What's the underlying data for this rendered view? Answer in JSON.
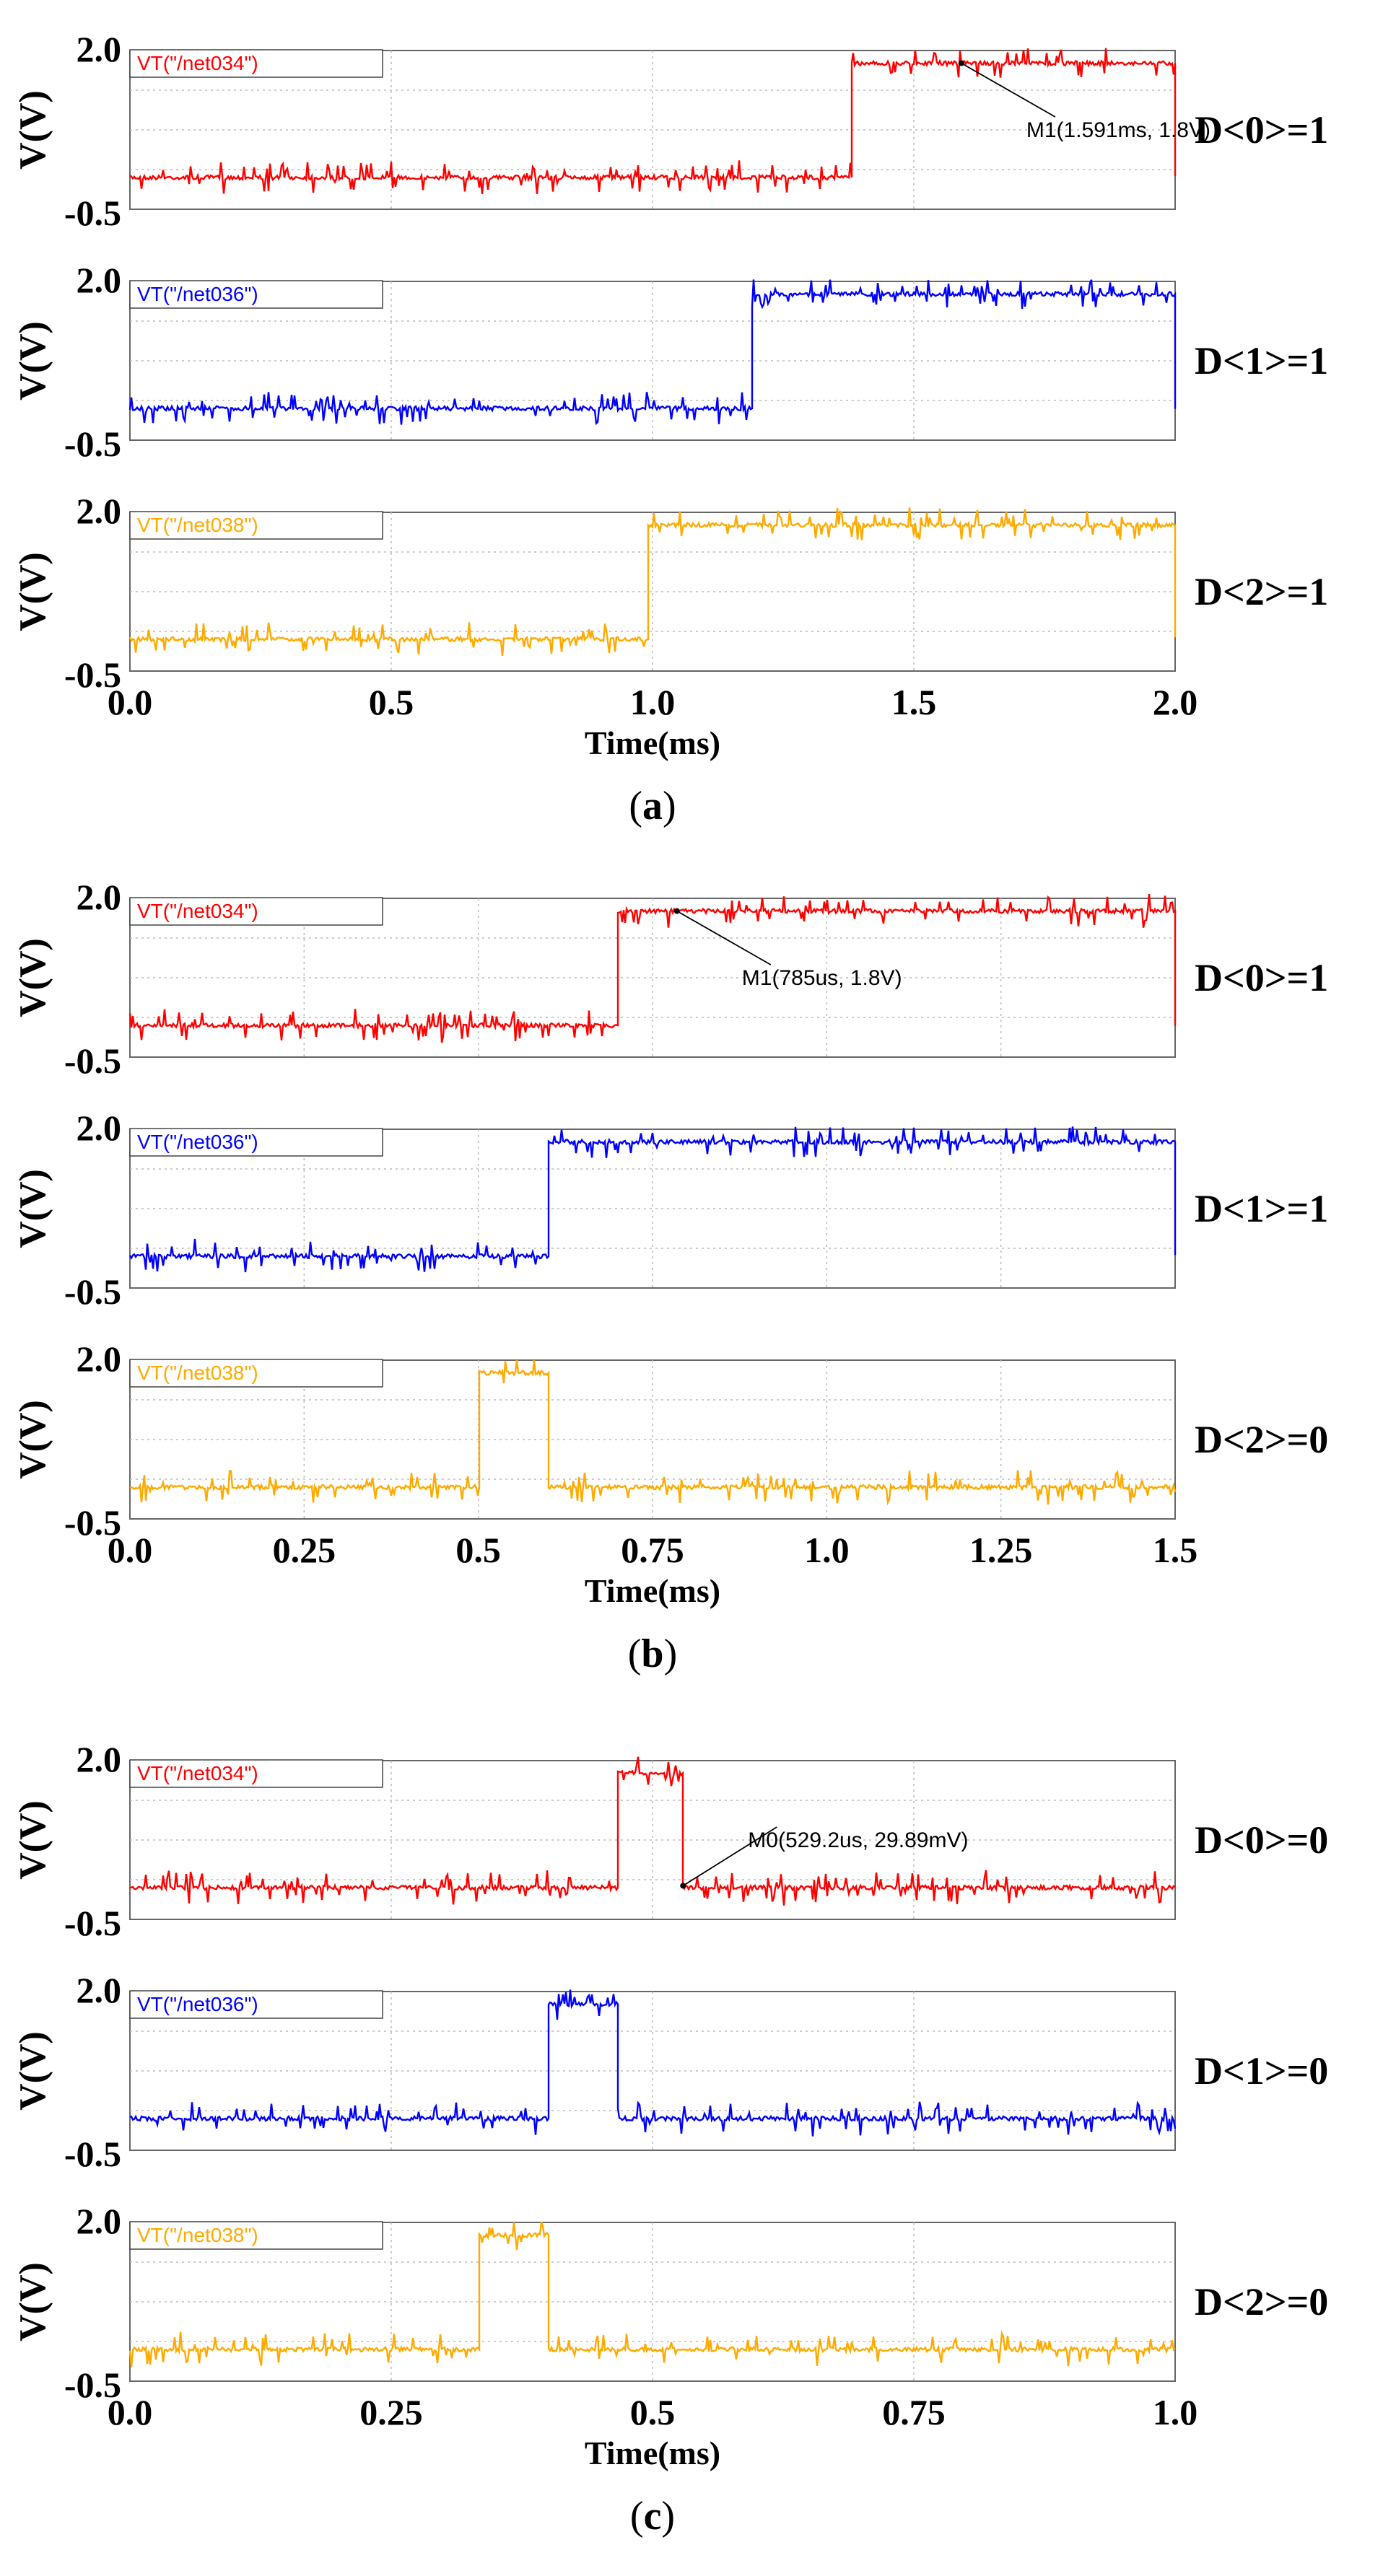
{
  "chart_data": [
    {
      "type": "line",
      "panel": "(a)",
      "caption": {
        "open": "(",
        "letter": "a",
        "close": ")"
      },
      "xlabel": "Time(ms)",
      "xlim": [
        0,
        2.0
      ],
      "xticks": [
        "0.0",
        "0.5",
        "1.0",
        "1.5",
        "2.0"
      ],
      "xtick_values": [
        0,
        0.5,
        1.0,
        1.5,
        2.0
      ],
      "sub": [
        {
          "trace": "VT(\"/net034\")",
          "color": "#ff0000",
          "ylabel": "V(V)",
          "ytick_top": "2.0",
          "ytick_bottom": "-0.5",
          "ylim": [
            -0.5,
            2.0
          ],
          "segments": [
            {
              "start": 1.38,
              "end": 2.0
            }
          ],
          "high_v": 1.8,
          "low_v": 0.0,
          "side_label": "D<0>=1",
          "marker": {
            "text": "M1(1.591ms, 1.8V)",
            "x": 1.591,
            "y": 1.8
          }
        },
        {
          "trace": "VT(\"/net036\")",
          "color": "#0000ff",
          "ylabel": "V(V)",
          "ytick_top": "2.0",
          "ytick_bottom": "-0.5",
          "ylim": [
            -0.5,
            2.0
          ],
          "segments": [
            {
              "start": 1.19,
              "end": 2.0
            }
          ],
          "high_v": 1.8,
          "low_v": 0.0,
          "side_label": "D<1>=1"
        },
        {
          "trace": "VT(\"/net038\")",
          "color": "#ffaa00",
          "ylabel": "V(V)",
          "ytick_top": "2.0",
          "ytick_bottom": "-0.5",
          "ylim": [
            -0.5,
            2.0
          ],
          "segments": [
            {
              "start": 0.99,
              "end": 2.0
            }
          ],
          "high_v": 1.8,
          "low_v": 0.0,
          "side_label": "D<2>=1"
        }
      ]
    },
    {
      "type": "line",
      "panel": "(b)",
      "caption": {
        "open": "(",
        "letter": "b",
        "close": ")"
      },
      "xlabel": "Time(ms)",
      "xlim": [
        0,
        1.5
      ],
      "xticks": [
        "0.0",
        "0.25",
        "0.5",
        "0.75",
        "1.0",
        "1.25",
        "1.5"
      ],
      "xtick_values": [
        0,
        0.25,
        0.5,
        0.75,
        1.0,
        1.25,
        1.5
      ],
      "sub": [
        {
          "trace": "VT(\"/net034\")",
          "color": "#ff0000",
          "ylabel": "V(V)",
          "ytick_top": "2.0",
          "ytick_bottom": "-0.5",
          "ylim": [
            -0.5,
            2.0
          ],
          "segments": [
            {
              "start": 0.7,
              "end": 1.5
            }
          ],
          "high_v": 1.8,
          "low_v": 0.0,
          "side_label": "D<0>=1",
          "marker": {
            "text": "M1(785us, 1.8V)",
            "x": 0.785,
            "y": 1.8
          }
        },
        {
          "trace": "VT(\"/net036\")",
          "color": "#0000ff",
          "ylabel": "V(V)",
          "ytick_top": "2.0",
          "ytick_bottom": "-0.5",
          "ylim": [
            -0.5,
            2.0
          ],
          "segments": [
            {
              "start": 0.6,
              "end": 1.5
            }
          ],
          "high_v": 1.8,
          "low_v": 0.0,
          "side_label": "D<1>=1"
        },
        {
          "trace": "VT(\"/net038\")",
          "color": "#ffaa00",
          "ylabel": "V(V)",
          "ytick_top": "2.0",
          "ytick_bottom": "-0.5",
          "ylim": [
            -0.5,
            2.0
          ],
          "segments": [
            {
              "start": 0.5,
              "end": 0.6
            }
          ],
          "high_v": 1.8,
          "low_v": 0.0,
          "side_label": "D<2>=0"
        }
      ]
    },
    {
      "type": "line",
      "panel": "(c)",
      "caption": {
        "open": "(",
        "letter": "c",
        "close": ")"
      },
      "xlabel": "Time(ms)",
      "xlim": [
        0,
        1.0
      ],
      "xticks": [
        "0.0",
        "0.25",
        "0.5",
        "0.75",
        "1.0"
      ],
      "xtick_values": [
        0,
        0.25,
        0.5,
        0.75,
        1.0
      ],
      "sub": [
        {
          "trace": "VT(\"/net034\")",
          "color": "#ff0000",
          "ylabel": "V(V)",
          "ytick_top": "2.0",
          "ytick_bottom": "-0.5",
          "ylim": [
            -0.5,
            2.0
          ],
          "segments": [
            {
              "start": 0.466,
              "end": 0.529
            }
          ],
          "high_v": 1.8,
          "low_v": 0.0,
          "side_label": "D<0>=0",
          "marker": {
            "text": "M0(529.2us, 29.89mV)",
            "x": 0.5292,
            "y": 0.02989
          }
        },
        {
          "trace": "VT(\"/net036\")",
          "color": "#0000ff",
          "ylabel": "V(V)",
          "ytick_top": "2.0",
          "ytick_bottom": "-0.5",
          "ylim": [
            -0.5,
            2.0
          ],
          "segments": [
            {
              "start": 0.4,
              "end": 0.466
            }
          ],
          "high_v": 1.8,
          "low_v": 0.0,
          "side_label": "D<1>=0"
        },
        {
          "trace": "VT(\"/net038\")",
          "color": "#ffaa00",
          "ylabel": "V(V)",
          "ytick_top": "2.0",
          "ytick_bottom": "-0.5",
          "ylim": [
            -0.5,
            2.0
          ],
          "segments": [
            {
              "start": 0.333,
              "end": 0.4
            }
          ],
          "high_v": 1.8,
          "low_v": 0.0,
          "side_label": "D<2>=0"
        }
      ]
    }
  ]
}
